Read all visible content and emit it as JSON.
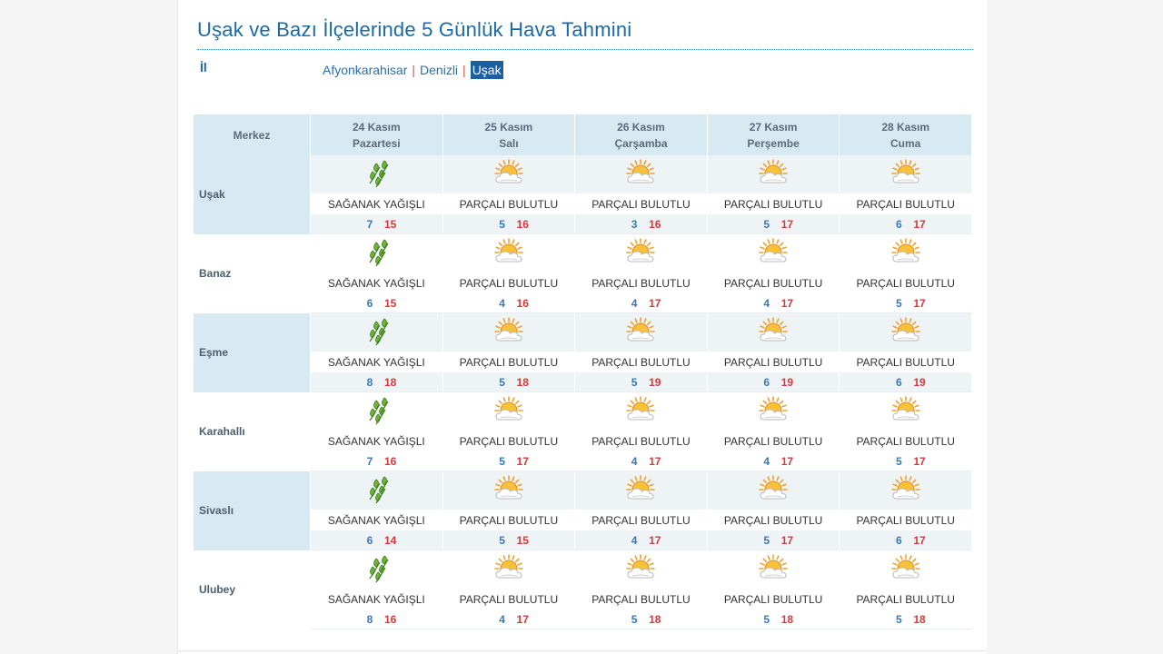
{
  "title": "Uşak ve Bazı İlçelerinde 5 Günlük Hava Tahmini",
  "il_label": "İl",
  "provinces": [
    {
      "name": "Afyonkarahisar",
      "active": false
    },
    {
      "name": "Denizli",
      "active": false
    },
    {
      "name": "Uşak",
      "active": true
    }
  ],
  "table": {
    "corner": "Merkez",
    "days": [
      {
        "date": "24 Kasım",
        "weekday": "Pazartesi"
      },
      {
        "date": "25 Kasım",
        "weekday": "Salı"
      },
      {
        "date": "26 Kasım",
        "weekday": "Çarşamba"
      },
      {
        "date": "27 Kasım",
        "weekday": "Perşembe"
      },
      {
        "date": "28 Kasım",
        "weekday": "Cuma"
      }
    ],
    "rows": [
      {
        "location": "Uşak",
        "shaded": true,
        "forecasts": [
          {
            "icon": "rain-shower-icon",
            "condition": "SAĞANAK YAĞIŞLI",
            "min": "7",
            "max": "15"
          },
          {
            "icon": "partly-cloudy-icon",
            "condition": "PARÇALI BULUTLU",
            "min": "5",
            "max": "16"
          },
          {
            "icon": "partly-cloudy-icon",
            "condition": "PARÇALI BULUTLU",
            "min": "3",
            "max": "16"
          },
          {
            "icon": "partly-cloudy-icon",
            "condition": "PARÇALI BULUTLU",
            "min": "5",
            "max": "17"
          },
          {
            "icon": "partly-cloudy-icon",
            "condition": "PARÇALI BULUTLU",
            "min": "6",
            "max": "17"
          }
        ]
      },
      {
        "location": "Banaz",
        "shaded": false,
        "forecasts": [
          {
            "icon": "rain-shower-icon",
            "condition": "SAĞANAK YAĞIŞLI",
            "min": "6",
            "max": "15"
          },
          {
            "icon": "partly-cloudy-icon",
            "condition": "PARÇALI BULUTLU",
            "min": "4",
            "max": "16"
          },
          {
            "icon": "partly-cloudy-icon",
            "condition": "PARÇALI BULUTLU",
            "min": "4",
            "max": "17"
          },
          {
            "icon": "partly-cloudy-icon",
            "condition": "PARÇALI BULUTLU",
            "min": "4",
            "max": "17"
          },
          {
            "icon": "partly-cloudy-icon",
            "condition": "PARÇALI BULUTLU",
            "min": "5",
            "max": "17"
          }
        ]
      },
      {
        "location": "Eşme",
        "shaded": true,
        "forecasts": [
          {
            "icon": "rain-shower-icon",
            "condition": "SAĞANAK YAĞIŞLI",
            "min": "8",
            "max": "18"
          },
          {
            "icon": "partly-cloudy-icon",
            "condition": "PARÇALI BULUTLU",
            "min": "5",
            "max": "18"
          },
          {
            "icon": "partly-cloudy-icon",
            "condition": "PARÇALI BULUTLU",
            "min": "5",
            "max": "19"
          },
          {
            "icon": "partly-cloudy-icon",
            "condition": "PARÇALI BULUTLU",
            "min": "6",
            "max": "19"
          },
          {
            "icon": "partly-cloudy-icon",
            "condition": "PARÇALI BULUTLU",
            "min": "6",
            "max": "19"
          }
        ]
      },
      {
        "location": "Karahallı",
        "shaded": false,
        "forecasts": [
          {
            "icon": "rain-shower-icon",
            "condition": "SAĞANAK YAĞIŞLI",
            "min": "7",
            "max": "16"
          },
          {
            "icon": "partly-cloudy-icon",
            "condition": "PARÇALI BULUTLU",
            "min": "5",
            "max": "17"
          },
          {
            "icon": "partly-cloudy-icon",
            "condition": "PARÇALI BULUTLU",
            "min": "4",
            "max": "17"
          },
          {
            "icon": "partly-cloudy-icon",
            "condition": "PARÇALI BULUTLU",
            "min": "4",
            "max": "17"
          },
          {
            "icon": "partly-cloudy-icon",
            "condition": "PARÇALI BULUTLU",
            "min": "5",
            "max": "17"
          }
        ]
      },
      {
        "location": "Sivaslı",
        "shaded": true,
        "forecasts": [
          {
            "icon": "rain-shower-icon",
            "condition": "SAĞANAK YAĞIŞLI",
            "min": "6",
            "max": "14"
          },
          {
            "icon": "partly-cloudy-icon",
            "condition": "PARÇALI BULUTLU",
            "min": "5",
            "max": "15"
          },
          {
            "icon": "partly-cloudy-icon",
            "condition": "PARÇALI BULUTLU",
            "min": "4",
            "max": "17"
          },
          {
            "icon": "partly-cloudy-icon",
            "condition": "PARÇALI BULUTLU",
            "min": "5",
            "max": "17"
          },
          {
            "icon": "partly-cloudy-icon",
            "condition": "PARÇALI BULUTLU",
            "min": "6",
            "max": "17"
          }
        ]
      },
      {
        "location": "Ulubey",
        "shaded": false,
        "forecasts": [
          {
            "icon": "rain-shower-icon",
            "condition": "SAĞANAK YAĞIŞLI",
            "min": "8",
            "max": "16"
          },
          {
            "icon": "partly-cloudy-icon",
            "condition": "PARÇALI BULUTLU",
            "min": "4",
            "max": "17"
          },
          {
            "icon": "partly-cloudy-icon",
            "condition": "PARÇALI BULUTLU",
            "min": "5",
            "max": "18"
          },
          {
            "icon": "partly-cloudy-icon",
            "condition": "PARÇALI BULUTLU",
            "min": "5",
            "max": "18"
          },
          {
            "icon": "partly-cloudy-icon",
            "condition": "PARÇALI BULUTLU",
            "min": "5",
            "max": "18"
          }
        ]
      }
    ]
  },
  "colors": {
    "title": "#1b6aa8",
    "header_bg": "#d7e9f3",
    "min_temp": "#3a78b5",
    "max_temp": "#d9383a",
    "active_province_bg": "#1a5fa3"
  }
}
